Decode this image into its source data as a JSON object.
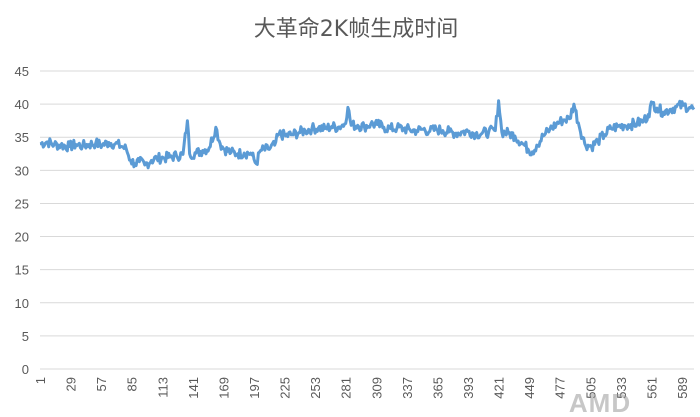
{
  "chart_data": {
    "type": "line",
    "title": "大革命2K帧生成时间",
    "xlabel": "",
    "ylabel": "",
    "ylim": [
      0,
      45
    ],
    "yticks": [
      0,
      5,
      10,
      15,
      20,
      25,
      30,
      35,
      40,
      45
    ],
    "xticks": [
      1,
      29,
      57,
      85,
      113,
      141,
      169,
      197,
      225,
      253,
      281,
      309,
      337,
      365,
      393,
      421,
      449,
      477,
      505,
      533,
      561,
      589
    ],
    "xlim": [
      1,
      600
    ],
    "grid": true,
    "legend": "none",
    "color": "#5b9bd5",
    "series": [
      {
        "values": [
          [
            1,
            34
          ],
          [
            8,
            34.3
          ],
          [
            14,
            33.9
          ],
          [
            20,
            33.8
          ],
          [
            28,
            33.6
          ],
          [
            34,
            33.9
          ],
          [
            40,
            33.7
          ],
          [
            46,
            33.9
          ],
          [
            52,
            34.1
          ],
          [
            58,
            33.8
          ],
          [
            64,
            34.2
          ],
          [
            70,
            34
          ],
          [
            76,
            33.6
          ],
          [
            80,
            33.2
          ],
          [
            84,
            31.5
          ],
          [
            88,
            31
          ],
          [
            92,
            31.3
          ],
          [
            97,
            30.8
          ],
          [
            103,
            31.5
          ],
          [
            108,
            31.8
          ],
          [
            114,
            31.9
          ],
          [
            120,
            32
          ],
          [
            126,
            32.2
          ],
          [
            132,
            32.4
          ],
          [
            136,
            37.5
          ],
          [
            138,
            32.5
          ],
          [
            144,
            32.6
          ],
          [
            150,
            33
          ],
          [
            156,
            33.4
          ],
          [
            162,
            36.5
          ],
          [
            166,
            34
          ],
          [
            170,
            33.2
          ],
          [
            176,
            32.7
          ],
          [
            182,
            32.5
          ],
          [
            188,
            32.6
          ],
          [
            194,
            32.6
          ],
          [
            199,
            31
          ],
          [
            203,
            33
          ],
          [
            210,
            33.2
          ],
          [
            216,
            33.8
          ],
          [
            220,
            35.5
          ],
          [
            226,
            35.2
          ],
          [
            232,
            35.4
          ],
          [
            238,
            35.7
          ],
          [
            244,
            36
          ],
          [
            250,
            36.3
          ],
          [
            256,
            36.4
          ],
          [
            262,
            36.3
          ],
          [
            268,
            36.6
          ],
          [
            274,
            36.5
          ],
          [
            280,
            37
          ],
          [
            283,
            39.5
          ],
          [
            286,
            36.8
          ],
          [
            292,
            36.8
          ],
          [
            298,
            36.6
          ],
          [
            304,
            37
          ],
          [
            310,
            36.9
          ],
          [
            316,
            36.5
          ],
          [
            322,
            36.3
          ],
          [
            328,
            36.4
          ],
          [
            334,
            36.3
          ],
          [
            340,
            36.1
          ],
          [
            346,
            36
          ],
          [
            352,
            36.2
          ],
          [
            358,
            35.9
          ],
          [
            364,
            36.2
          ],
          [
            370,
            36
          ],
          [
            376,
            35.8
          ],
          [
            382,
            35.6
          ],
          [
            388,
            35.8
          ],
          [
            394,
            35.9
          ],
          [
            400,
            35.5
          ],
          [
            406,
            35.6
          ],
          [
            412,
            35.8
          ],
          [
            418,
            36
          ],
          [
            421,
            40.5
          ],
          [
            424,
            35.8
          ],
          [
            430,
            35.6
          ],
          [
            436,
            35.2
          ],
          [
            442,
            34.2
          ],
          [
            448,
            33.2
          ],
          [
            452,
            32.8
          ],
          [
            456,
            33.8
          ],
          [
            462,
            35.2
          ],
          [
            468,
            36.2
          ],
          [
            474,
            37
          ],
          [
            480,
            37.6
          ],
          [
            486,
            37.8
          ],
          [
            490,
            40
          ],
          [
            494,
            37.2
          ],
          [
            500,
            34
          ],
          [
            506,
            33.6
          ],
          [
            512,
            34.4
          ],
          [
            518,
            35.4
          ],
          [
            524,
            36.3
          ],
          [
            530,
            36.6
          ],
          [
            536,
            36.8
          ],
          [
            542,
            36.9
          ],
          [
            548,
            37.1
          ],
          [
            554,
            37.5
          ],
          [
            558,
            38.4
          ],
          [
            562,
            40.2
          ],
          [
            566,
            39.4
          ],
          [
            572,
            38.8
          ],
          [
            578,
            39.2
          ],
          [
            584,
            39.6
          ],
          [
            590,
            39.8
          ],
          [
            596,
            39.5
          ],
          [
            600,
            39.2
          ]
        ]
      }
    ]
  },
  "watermark": "AMD"
}
